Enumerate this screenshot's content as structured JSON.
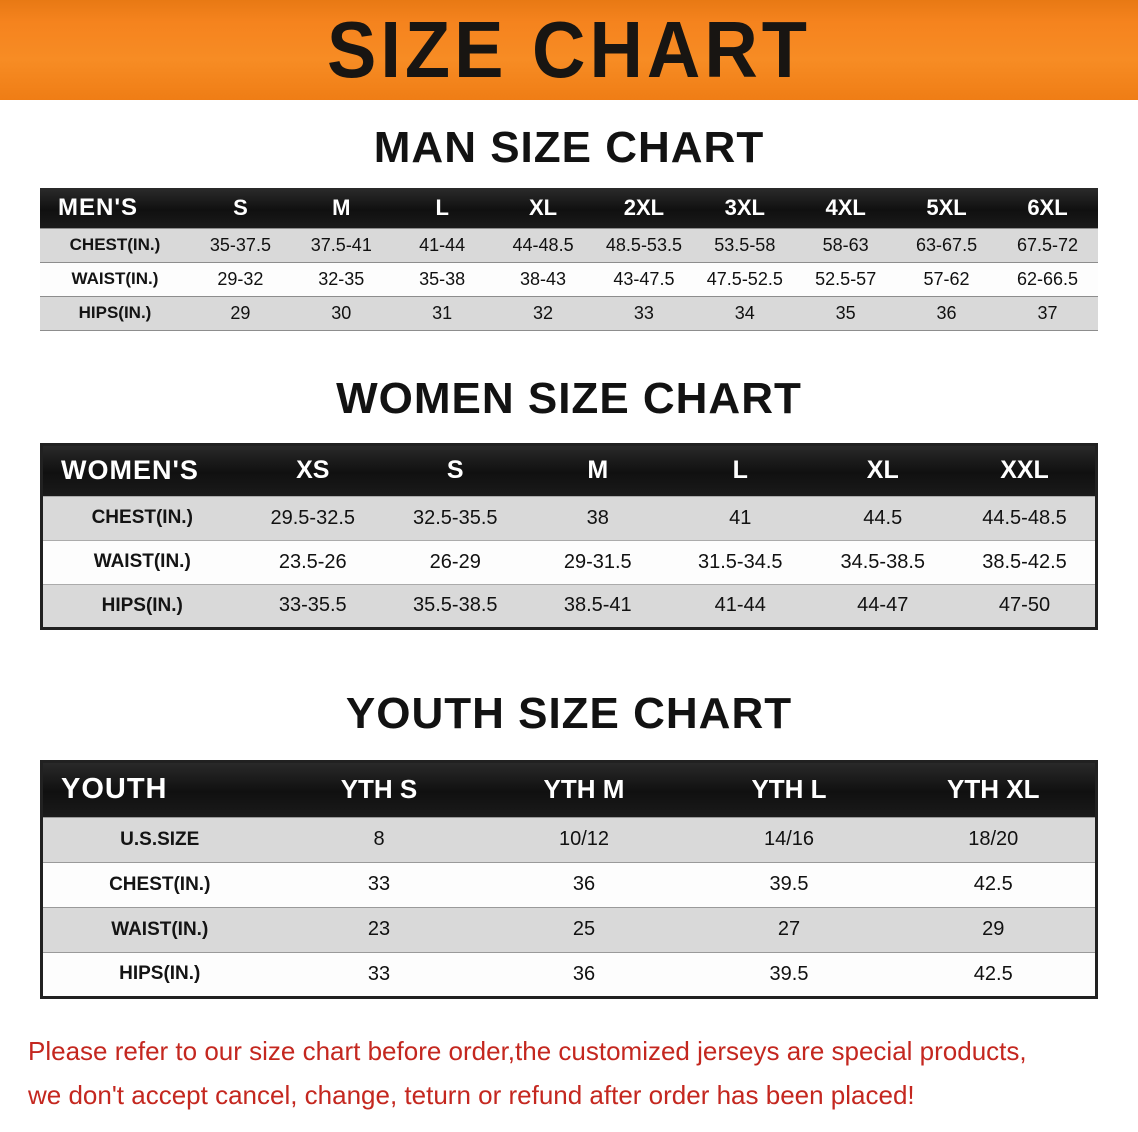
{
  "banner": {
    "title": "SIZE CHART",
    "background_color": "#F5831E",
    "text_color": "#181512"
  },
  "sections": [
    {
      "id": "men",
      "heading": "MAN SIZE CHART",
      "table": {
        "header": [
          "MEN'S",
          "S",
          "M",
          "L",
          "XL",
          "2XL",
          "3XL",
          "4XL",
          "5XL",
          "6XL"
        ],
        "rows": [
          [
            "CHEST(IN.)",
            "35-37.5",
            "37.5-41",
            "41-44",
            "44-48.5",
            "48.5-53.5",
            "53.5-58",
            "58-63",
            "63-67.5",
            "67.5-72"
          ],
          [
            "WAIST(IN.)",
            "29-32",
            "32-35",
            "35-38",
            "38-43",
            "43-47.5",
            "47.5-52.5",
            "52.5-57",
            "57-62",
            "62-66.5"
          ],
          [
            "HIPS(IN.)",
            "29",
            "30",
            "31",
            "32",
            "33",
            "34",
            "35",
            "36",
            "37"
          ]
        ]
      }
    },
    {
      "id": "women",
      "heading": "WOMEN SIZE CHART",
      "table": {
        "header": [
          "WOMEN'S",
          "XS",
          "S",
          "M",
          "L",
          "XL",
          "XXL"
        ],
        "rows": [
          [
            "CHEST(IN.)",
            "29.5-32.5",
            "32.5-35.5",
            "38",
            "41",
            "44.5",
            "44.5-48.5"
          ],
          [
            "WAIST(IN.)",
            "23.5-26",
            "26-29",
            "29-31.5",
            "31.5-34.5",
            "34.5-38.5",
            "38.5-42.5"
          ],
          [
            "HIPS(IN.)",
            "33-35.5",
            "35.5-38.5",
            "38.5-41",
            "41-44",
            "44-47",
            "47-50"
          ]
        ]
      }
    },
    {
      "id": "youth",
      "heading": "YOUTH SIZE CHART",
      "table": {
        "header": [
          "YOUTH",
          "YTH S",
          "YTH M",
          "YTH L",
          "YTH XL"
        ],
        "rows": [
          [
            "U.S.SIZE",
            "8",
            "10/12",
            "14/16",
            "18/20"
          ],
          [
            "CHEST(IN.)",
            "33",
            "36",
            "39.5",
            "42.5"
          ],
          [
            "WAIST(IN.)",
            "23",
            "25",
            "27",
            "29"
          ],
          [
            "HIPS(IN.)",
            "33",
            "36",
            "39.5",
            "42.5"
          ]
        ]
      }
    }
  ],
  "disclaimer": {
    "line1": "Please refer to our size chart before order,the customized jerseys are special products,",
    "line2": "we don't accept cancel, change, teturn or refund after order has been placed!",
    "text_color": "#C4271F"
  }
}
